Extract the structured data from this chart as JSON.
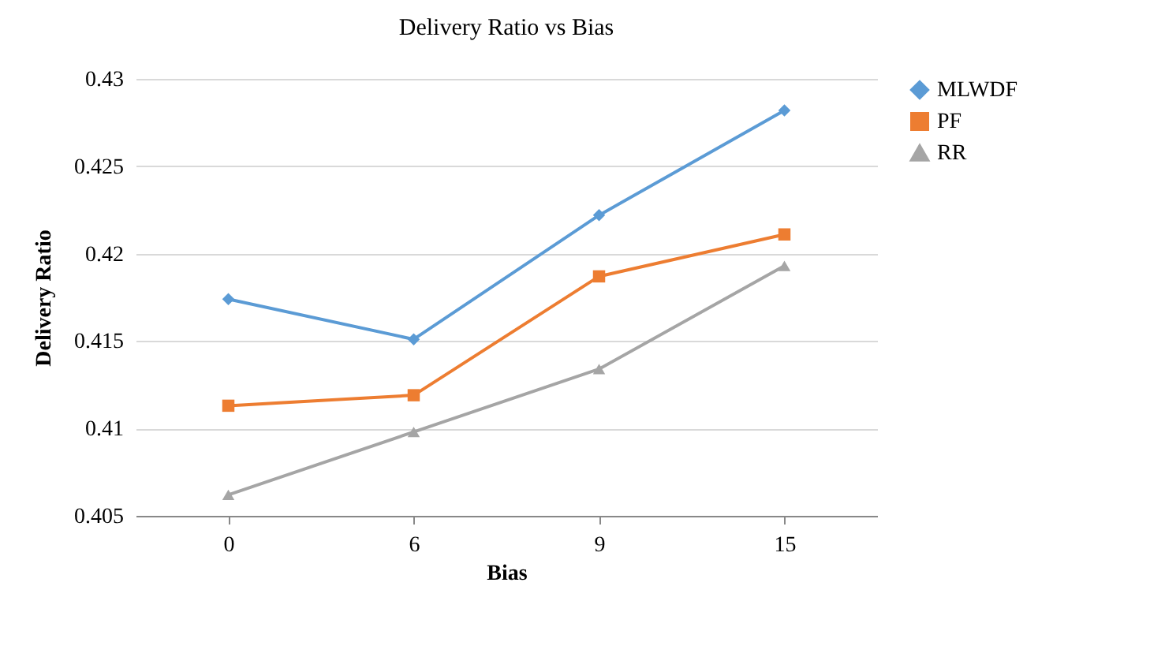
{
  "chart_data": {
    "type": "line",
    "title": "Delivery Ratio vs Bias",
    "xlabel": "Bias",
    "ylabel": "Delivery Ratio",
    "categories": [
      "0",
      "6",
      "9",
      "15"
    ],
    "series": [
      {
        "name": "MLWDF",
        "color": "#5b9bd5",
        "marker": "diamond",
        "values": [
          0.4174,
          0.4151,
          0.4222,
          0.4282
        ]
      },
      {
        "name": "PF",
        "color": "#ed7d31",
        "marker": "square",
        "values": [
          0.4113,
          0.4119,
          0.4187,
          0.4211
        ]
      },
      {
        "name": "RR",
        "color": "#a5a5a5",
        "marker": "triangle",
        "values": [
          0.4062,
          0.4098,
          0.4134,
          0.4193
        ]
      }
    ],
    "ylim": [
      0.405,
      0.43
    ],
    "yticks": [
      0.405,
      0.41,
      0.415,
      0.42,
      0.425,
      0.43
    ],
    "grid": "y",
    "legend": "right"
  }
}
